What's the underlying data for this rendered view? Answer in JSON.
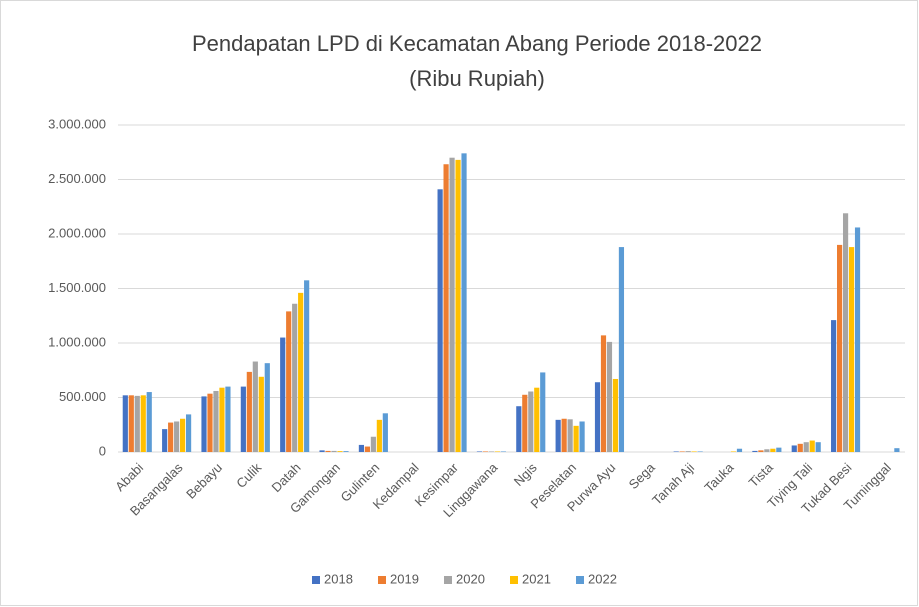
{
  "chart_data": {
    "type": "bar",
    "title": "Pendapatan LPD di Kecamatan Abang Periode 2018-2022",
    "subtitle": "(Ribu Rupiah)",
    "categories": [
      "Ababi",
      "Basangalas",
      "Bebayu",
      "Culik",
      "Datah",
      "Gamongan",
      "Gulinten",
      "Kedampal",
      "Kesimpar",
      "Linggawana",
      "Ngis",
      "Peselatan",
      "Purwa Ayu",
      "Sega",
      "Tanah Aji",
      "Tauka",
      "Tista",
      "Tiying Tali",
      "Tukad Besi",
      "Tuminggal"
    ],
    "series": [
      {
        "name": "2018",
        "color": "#4472c4",
        "values": [
          520000,
          210000,
          510000,
          600000,
          1050000,
          15000,
          65000,
          0,
          2410000,
          5000,
          420000,
          295000,
          640000,
          0,
          5000,
          0,
          10000,
          60000,
          1210000,
          0
        ]
      },
      {
        "name": "2019",
        "color": "#ed7d31",
        "values": [
          520000,
          270000,
          535000,
          735000,
          1290000,
          10000,
          50000,
          0,
          2640000,
          5000,
          525000,
          305000,
          1070000,
          0,
          5000,
          0,
          15000,
          75000,
          1900000,
          0
        ]
      },
      {
        "name": "2020",
        "color": "#a5a5a5",
        "values": [
          515000,
          280000,
          560000,
          830000,
          1360000,
          10000,
          140000,
          0,
          2700000,
          5000,
          555000,
          300000,
          1010000,
          0,
          8000,
          0,
          25000,
          90000,
          2190000,
          0
        ]
      },
      {
        "name": "2021",
        "color": "#ffc000",
        "values": [
          520000,
          305000,
          590000,
          690000,
          1460000,
          8000,
          295000,
          0,
          2680000,
          5000,
          590000,
          240000,
          670000,
          0,
          5000,
          5000,
          30000,
          105000,
          1880000,
          0
        ]
      },
      {
        "name": "2022",
        "color": "#5b9bd5",
        "values": [
          550000,
          345000,
          600000,
          815000,
          1575000,
          8000,
          355000,
          0,
          2740000,
          5000,
          730000,
          280000,
          1880000,
          0,
          5000,
          30000,
          40000,
          90000,
          2060000,
          35000
        ]
      }
    ],
    "ylim": [
      0,
      3000000
    ],
    "yticks": [
      0,
      {
        "value": 500000,
        "label": "500.000"
      },
      {
        "value": 1000000,
        "label": "1.000.000"
      },
      {
        "value": 1500000,
        "label": "1.500.000"
      },
      {
        "value": 2000000,
        "label": "2.000.000"
      },
      {
        "value": 2500000,
        "label": "2.500.000"
      },
      {
        "value": 3000000,
        "label": "3.000.000"
      }
    ],
    "grid": true,
    "legend": "bottom"
  }
}
